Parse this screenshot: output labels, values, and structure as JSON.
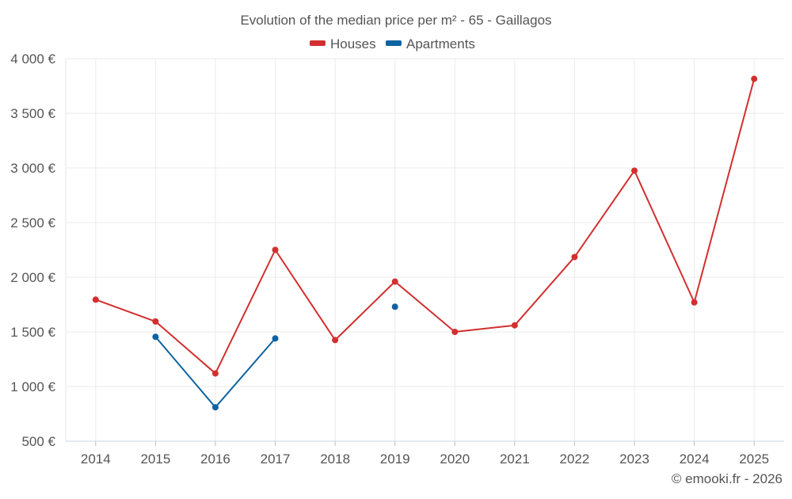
{
  "chart_data": {
    "type": "line",
    "title": "Evolution of the median price per m² - 65 - Gaillagos",
    "categories": [
      "2014",
      "2015",
      "2016",
      "2017",
      "2018",
      "2019",
      "2020",
      "2021",
      "2022",
      "2023",
      "2024",
      "2025"
    ],
    "y_ticks": [
      "500 €",
      "1 000 €",
      "1 500 €",
      "2 000 €",
      "2 500 €",
      "3 000 €",
      "3 500 €",
      "4 000 €"
    ],
    "y_tick_values": [
      500,
      1000,
      1500,
      2000,
      2500,
      3000,
      3500,
      4000
    ],
    "ylim": [
      500,
      4000
    ],
    "grid": true,
    "legend_position": "top-center",
    "series": [
      {
        "name": "Houses",
        "color": "#d32f2f",
        "values": [
          1795,
          1595,
          1120,
          2250,
          1425,
          1960,
          1500,
          1560,
          2185,
          2975,
          1770,
          3815
        ]
      },
      {
        "name": "Apartments",
        "color": "#0d62a0",
        "values": [
          null,
          1455,
          810,
          1440,
          null,
          1730,
          null,
          null,
          null,
          null,
          null,
          null
        ]
      }
    ],
    "credit": "© emooki.fr - 2026"
  }
}
